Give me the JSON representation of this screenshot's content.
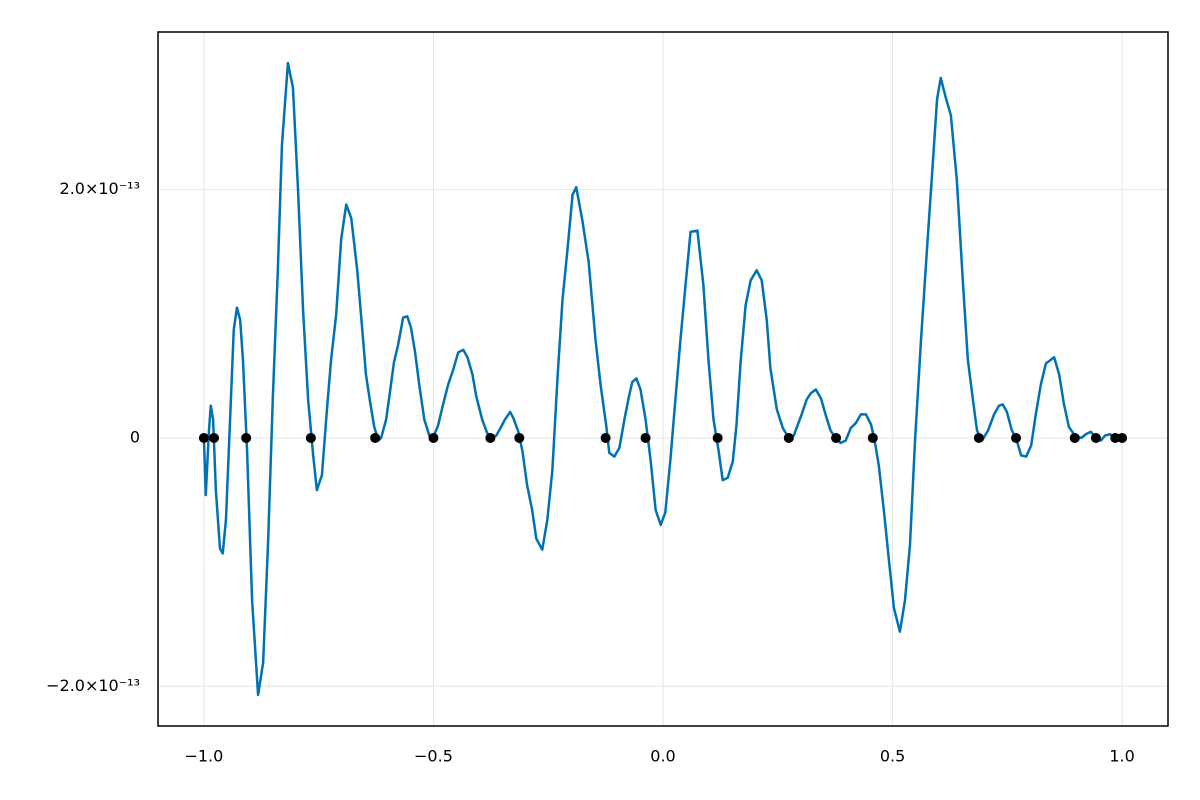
{
  "chart_data": {
    "type": "line",
    "xlim": [
      -1.1,
      1.1
    ],
    "ylim": [
      -2.32e-13,
      3.27e-13
    ],
    "xticks": [
      {
        "value": -1.0,
        "label": "−1.0"
      },
      {
        "value": -0.5,
        "label": "−0.5"
      },
      {
        "value": 0.0,
        "label": "0.0"
      },
      0.5,
      {
        "value": 1.0,
        "label": "1.0"
      }
    ],
    "yticks": [
      {
        "value": -2e-13,
        "label": "−2.0×10⁻¹³"
      },
      0,
      {
        "value": 2e-13,
        "label": "2.0×10⁻¹³"
      }
    ],
    "grid": true,
    "series": [
      {
        "type": "line",
        "color": "#0072b2",
        "x": [
          -1.0,
          -0.996,
          -0.989,
          -0.985,
          -0.98,
          -0.974,
          -0.965,
          -0.959,
          -0.952,
          -0.943,
          -0.935,
          -0.928,
          -0.921,
          -0.915,
          -0.906,
          -0.895,
          -0.882,
          -0.871,
          -0.86,
          -0.85,
          -0.839,
          -0.83,
          -0.817,
          -0.806,
          -0.795,
          -0.784,
          -0.773,
          -0.762,
          -0.754,
          -0.743,
          -0.732,
          -0.723,
          -0.712,
          -0.701,
          -0.69,
          -0.679,
          -0.666,
          -0.655,
          -0.647,
          -0.638,
          -0.629,
          -0.62,
          -0.614,
          -0.603,
          -0.594,
          -0.586,
          -0.577,
          -0.566,
          -0.557,
          -0.549,
          -0.54,
          -0.531,
          -0.52,
          -0.509,
          -0.501,
          -0.49,
          -0.479,
          -0.468,
          -0.457,
          -0.446,
          -0.435,
          -0.426,
          -0.415,
          -0.407,
          -0.394,
          -0.383,
          -0.374,
          -0.363,
          -0.354,
          -0.344,
          -0.333,
          -0.326,
          -0.315,
          -0.306,
          -0.296,
          -0.285,
          -0.276,
          -0.263,
          -0.252,
          -0.241,
          -0.23,
          -0.219,
          -0.208,
          -0.197,
          -0.189,
          -0.176,
          -0.162,
          -0.147,
          -0.136,
          -0.123,
          -0.117,
          -0.106,
          -0.095,
          -0.084,
          -0.075,
          -0.067,
          -0.058,
          -0.049,
          -0.038,
          -0.027,
          -0.016,
          -0.005,
          0.005,
          0.016,
          0.027,
          0.038,
          0.049,
          0.06,
          0.075,
          0.088,
          0.099,
          0.11,
          0.121,
          0.13,
          0.141,
          0.152,
          0.16,
          0.169,
          0.18,
          0.191,
          0.204,
          0.215,
          0.226,
          0.234,
          0.248,
          0.261,
          0.274,
          0.285,
          0.293,
          0.302,
          0.313,
          0.322,
          0.333,
          0.344,
          0.354,
          0.365,
          0.376,
          0.387,
          0.398,
          0.409,
          0.42,
          0.431,
          0.442,
          0.453,
          0.461,
          0.47,
          0.481,
          0.492,
          0.503,
          0.516,
          0.527,
          0.538,
          0.549,
          0.562,
          0.575,
          0.586,
          0.597,
          0.605,
          0.616,
          0.627,
          0.64,
          0.653,
          0.664,
          0.675,
          0.684,
          0.695,
          0.708,
          0.721,
          0.732,
          0.74,
          0.749,
          0.76,
          0.769,
          0.78,
          0.791,
          0.802,
          0.812,
          0.823,
          0.834,
          0.852,
          0.863,
          0.873,
          0.884,
          0.897,
          0.911,
          0.921,
          0.932,
          0.943,
          0.954,
          0.963,
          0.974,
          0.985,
          1.0
        ],
        "values": [
          0,
          -4.6e-14,
          6e-15,
          2.6e-14,
          1.5e-14,
          -4.2e-14,
          -8.9e-14,
          -9.3e-14,
          -6.6e-14,
          1.5e-14,
          8.7e-14,
          1.05e-13,
          9.5e-14,
          6.3e-14,
          -1e-14,
          -1.31e-13,
          -2.07e-13,
          -1.81e-13,
          -8.2e-14,
          3.1e-14,
          1.35e-13,
          2.36e-13,
          3.02e-13,
          2.82e-13,
          2e-13,
          1.03e-13,
          3.1e-14,
          -1.4e-14,
          -4.2e-14,
          -3e-14,
          2.3e-14,
          6.3e-14,
          9.9e-14,
          1.6e-13,
          1.88e-13,
          1.77e-13,
          1.35e-13,
          8.7e-14,
          5.1e-14,
          2.9e-14,
          9e-15,
          -2e-15,
          0,
          1.5e-14,
          3.9e-14,
          6.1e-14,
          7.5e-14,
          9.7e-14,
          9.8e-14,
          8.9e-14,
          6.9e-14,
          4.3e-14,
          1.5e-14,
          2e-15,
          0,
          1e-14,
          2.7e-14,
          4.3e-14,
          5.5e-14,
          6.9e-14,
          7.1e-14,
          6.5e-14,
          5.1e-14,
          3.4e-14,
          1.5e-14,
          4e-15,
          0,
          2e-15,
          8e-15,
          1.5e-14,
          2.1e-14,
          1.6e-14,
          5e-15,
          -1.1e-14,
          -3.8e-14,
          -5.8e-14,
          -8.1e-14,
          -9e-14,
          -6.6e-14,
          -2.6e-14,
          4.7e-14,
          1.11e-13,
          1.52e-13,
          1.96e-13,
          2.02e-13,
          1.76e-13,
          1.42e-13,
          7.9e-14,
          4.3e-14,
          8e-15,
          -1.2e-14,
          -1.5e-14,
          -8e-15,
          1.5e-14,
          3.2e-14,
          4.5e-14,
          4.8e-14,
          3.9e-14,
          1.5e-14,
          -1.8e-14,
          -5.8e-14,
          -7e-14,
          -6e-14,
          -1.8e-14,
          3.1e-14,
          7.9e-14,
          1.23e-13,
          1.66e-13,
          1.67e-13,
          1.23e-13,
          6.3e-14,
          1.5e-14,
          -1e-14,
          -3.4e-14,
          -3.2e-14,
          -1.9e-14,
          1e-14,
          6.1e-14,
          1.07e-13,
          1.27e-13,
          1.35e-13,
          1.27e-13,
          9.5e-14,
          5.6e-14,
          2.3e-14,
          8e-15,
          0,
          2e-15,
          1e-14,
          1.9e-14,
          3.1e-14,
          3.6e-14,
          3.9e-14,
          3.2e-14,
          1.9e-14,
          6e-15,
          0,
          -4e-15,
          -2e-15,
          8e-15,
          1.2e-14,
          1.9e-14,
          1.9e-14,
          1.1e-14,
          -2e-15,
          -2.2e-14,
          -5.8e-14,
          -9.8e-14,
          -1.37e-13,
          -1.56e-13,
          -1.31e-13,
          -8.6e-14,
          -2e-15,
          7.9e-14,
          1.52e-13,
          2.12e-13,
          2.73e-13,
          2.9e-13,
          2.74e-13,
          2.6e-13,
          2.08e-13,
          1.27e-13,
          6.3e-14,
          3.1e-14,
          6e-15,
          -2e-15,
          6e-15,
          1.9e-14,
          2.6e-14,
          2.7e-14,
          2.1e-14,
          6e-15,
          0,
          -1.4e-14,
          -1.5e-14,
          -6e-15,
          1.9e-14,
          4.3e-14,
          6e-14,
          6.5e-14,
          5.1e-14,
          2.8e-14,
          9e-15,
          2e-15,
          0,
          3e-15,
          5e-15,
          0,
          -2e-15,
          2e-15,
          3e-15,
          0,
          0
        ]
      },
      {
        "type": "scatter",
        "color": "#000000",
        "x": [
          -1.0,
          -0.978,
          -0.908,
          -0.767,
          -0.627,
          -0.5,
          -0.376,
          -0.313,
          -0.125,
          -0.038,
          0.119,
          0.274,
          0.377,
          0.457,
          0.688,
          0.769,
          0.897,
          0.943,
          0.985,
          1.0
        ],
        "values": [
          0,
          0,
          0,
          0,
          0,
          0,
          0,
          0,
          0,
          0,
          0,
          0,
          0,
          0,
          0,
          0,
          0,
          0,
          0,
          0
        ]
      }
    ]
  }
}
